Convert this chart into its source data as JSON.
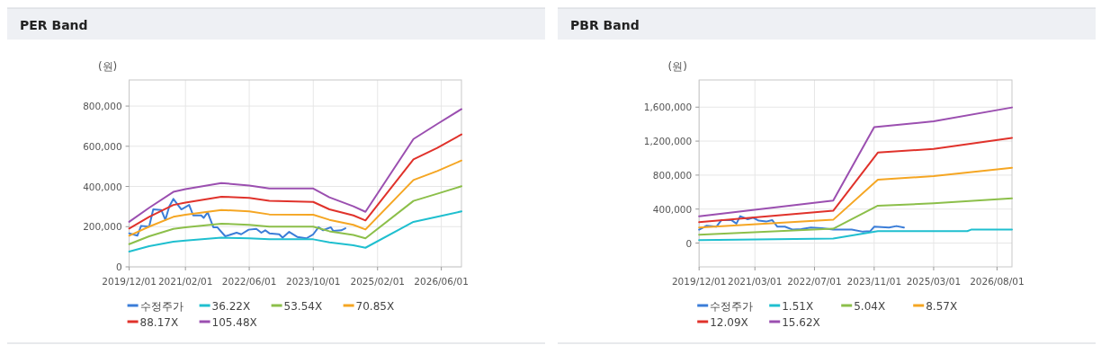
{
  "chart_data": [
    {
      "type": "line",
      "title": "PER Band",
      "ylabel": "(원)",
      "grid": true,
      "legend": "bottom",
      "xlim": [
        "2019-12-01",
        "2026-11-01"
      ],
      "ylim": [
        0,
        930000
      ],
      "xticks": [
        {
          "value": "2019-12-01",
          "label": "2019/12/01"
        },
        {
          "value": "2021-02-01",
          "label": "2021/02/01"
        },
        {
          "value": "2022-06-01",
          "label": "2022/06/01"
        },
        {
          "value": "2023-10-01",
          "label": "2023/10/01"
        },
        {
          "value": "2025-02-01",
          "label": "2025/02/01"
        },
        {
          "value": "2026-06-01",
          "label": "2026/06/01"
        }
      ],
      "yticks": [
        0,
        {
          "value": 200000,
          "label": "200,000"
        },
        {
          "value": 400000,
          "label": "400,000"
        },
        {
          "value": 600000,
          "label": "600,000"
        },
        {
          "value": 800000,
          "label": "800,000"
        }
      ],
      "series": [
        {
          "name": "수정주가",
          "color": "#3b7dd8",
          "x": [
            "2019-12-01",
            "2020-02-01",
            "2020-03-01",
            "2020-05-01",
            "2020-06-01",
            "2020-08-01",
            "2020-09-01",
            "2020-10-01",
            "2020-11-01",
            "2021-01-01",
            "2021-03-01",
            "2021-04-01",
            "2021-06-01",
            "2021-06-20",
            "2021-07-20",
            "2021-09-01",
            "2021-10-01",
            "2021-12-01",
            "2022-02-25",
            "2022-04-01",
            "2022-05-28",
            "2022-07-25",
            "2022-09-01",
            "2022-10-01",
            "2022-11-01",
            "2023-01-15",
            "2023-02-10",
            "2023-04-01",
            "2023-06-01",
            "2023-08-10",
            "2023-10-01",
            "2023-11-10",
            "2023-12-15",
            "2024-02-12",
            "2024-03-01",
            "2024-05-01",
            "2024-06-01"
          ],
          "values": [
            167000,
            155000,
            204000,
            200000,
            286000,
            283000,
            234000,
            301000,
            338000,
            286000,
            308000,
            256000,
            256000,
            244000,
            271000,
            197000,
            197000,
            152000,
            170000,
            162000,
            185000,
            189000,
            170000,
            182000,
            167000,
            162000,
            145000,
            174000,
            149000,
            142000,
            162000,
            197000,
            182000,
            197000,
            179000,
            182000,
            192000
          ]
        },
        {
          "name": "36.22X",
          "color": "#1fbfcf",
          "x": [
            "2019-12-01",
            "2020-05-01",
            "2020-11-01",
            "2021-02-01",
            "2021-11-01",
            "2022-06-01",
            "2022-11-01",
            "2023-10-01",
            "2024-02-01",
            "2024-08-01",
            "2024-11-01",
            "2025-11-01",
            "2026-05-01",
            "2026-11-01"
          ],
          "values": [
            76000,
            103000,
            125000,
            131000,
            145000,
            142000,
            137000,
            137000,
            122000,
            107000,
            95000,
            224000,
            249000,
            276000
          ]
        },
        {
          "name": "53.54X",
          "color": "#8cbf4a",
          "x": [
            "2019-12-01",
            "2020-05-01",
            "2020-11-01",
            "2021-02-01",
            "2021-11-01",
            "2022-06-01",
            "2022-11-01",
            "2023-10-01",
            "2024-02-01",
            "2024-08-01",
            "2024-11-01",
            "2025-11-01",
            "2026-05-01",
            "2026-11-01"
          ],
          "values": [
            113000,
            152000,
            189000,
            197000,
            215000,
            209000,
            200000,
            200000,
            177000,
            159000,
            142000,
            328000,
            364000,
            401000
          ]
        },
        {
          "name": "70.85X",
          "color": "#f5a623",
          "x": [
            "2019-12-01",
            "2020-05-01",
            "2020-11-01",
            "2021-02-01",
            "2021-11-01",
            "2022-06-01",
            "2022-11-01",
            "2023-10-01",
            "2024-02-01",
            "2024-08-01",
            "2024-11-01",
            "2025-11-01",
            "2026-05-01",
            "2026-11-01"
          ],
          "values": [
            155000,
            200000,
            249000,
            259000,
            283000,
            276000,
            261000,
            259000,
            234000,
            209000,
            186000,
            432000,
            477000,
            529000
          ]
        },
        {
          "name": "88.17X",
          "color": "#e0322b",
          "x": [
            "2019-12-01",
            "2020-05-01",
            "2020-11-01",
            "2021-02-01",
            "2021-11-01",
            "2022-06-01",
            "2022-11-01",
            "2023-10-01",
            "2024-02-01",
            "2024-08-01",
            "2024-11-01",
            "2025-11-01",
            "2026-05-01",
            "2026-11-01"
          ],
          "values": [
            191000,
            249000,
            308000,
            320000,
            349000,
            343000,
            329000,
            323000,
            286000,
            256000,
            231000,
            535000,
            592000,
            659000
          ]
        },
        {
          "name": "105.48X",
          "color": "#9b4fb0",
          "x": [
            "2019-12-01",
            "2020-05-01",
            "2020-11-01",
            "2021-02-01",
            "2021-11-01",
            "2022-06-01",
            "2022-11-01",
            "2023-10-01",
            "2024-02-01",
            "2024-08-01",
            "2024-11-01",
            "2025-11-01",
            "2026-05-01",
            "2026-11-01"
          ],
          "values": [
            224000,
            294000,
            373000,
            387000,
            417000,
            405000,
            390000,
            390000,
            346000,
            301000,
            274000,
            636000,
            711000,
            785000
          ]
        }
      ]
    },
    {
      "type": "line",
      "title": "PBR Band",
      "ylabel": "(원)",
      "grid": true,
      "legend": "bottom",
      "xlim": [
        "2019-12-01",
        "2026-12-01"
      ],
      "ylim": [
        -280000,
        1920000
      ],
      "xticks": [
        {
          "value": "2019-12-01",
          "label": "2019/12/01"
        },
        {
          "value": "2021-03-01",
          "label": "2021/03/01"
        },
        {
          "value": "2022-07-01",
          "label": "2022/07/01"
        },
        {
          "value": "2023-11-01",
          "label": "2023/11/01"
        },
        {
          "value": "2025-03-01",
          "label": "2025/03/01"
        },
        {
          "value": "2026-08-01",
          "label": "2026/08/01"
        }
      ],
      "yticks": [
        0,
        {
          "value": 400000,
          "label": "400,000"
        },
        {
          "value": 800000,
          "label": "800,000"
        },
        {
          "value": 1200000,
          "label": "1,200,000"
        },
        {
          "value": 1600000,
          "label": "1,600,000"
        }
      ],
      "series": [
        {
          "name": "수정주가",
          "color": "#3b7dd8",
          "x": [
            "2019-12-01",
            "2020-02-01",
            "2020-04-20",
            "2020-06-01",
            "2020-08-20",
            "2020-10-01",
            "2020-11-01",
            "2021-01-01",
            "2021-02-15",
            "2021-04-01",
            "2021-06-01",
            "2021-07-20",
            "2021-09-01",
            "2021-11-01",
            "2022-01-05",
            "2022-03-15",
            "2022-06-01",
            "2022-09-01",
            "2022-12-01",
            "2023-05-01",
            "2023-08-01",
            "2023-10-01",
            "2023-11-01",
            "2024-03-01",
            "2024-05-01",
            "2024-07-01"
          ],
          "values": [
            158000,
            204000,
            193000,
            271000,
            271000,
            229000,
            316000,
            281000,
            299000,
            264000,
            253000,
            271000,
            193000,
            193000,
            158000,
            165000,
            183000,
            176000,
            158000,
            158000,
            134000,
            141000,
            193000,
            183000,
            200000,
            183000
          ]
        },
        {
          "name": "1.51X",
          "color": "#1fbfcf",
          "x": [
            "2019-12-01",
            "2022-12-01",
            "2023-12-01",
            "2025-03-01",
            "2025-12-01",
            "2026-01-01",
            "2026-12-01"
          ],
          "values": [
            35000,
            53000,
            141000,
            141000,
            141000,
            158000,
            158000
          ]
        },
        {
          "name": "5.04X",
          "color": "#8cbf4a",
          "x": [
            "2019-12-01",
            "2022-12-01",
            "2023-12-01",
            "2025-03-01",
            "2026-12-01"
          ],
          "values": [
            98000,
            169000,
            440000,
            468000,
            527000
          ]
        },
        {
          "name": "8.57X",
          "color": "#f5a623",
          "x": [
            "2019-12-01",
            "2022-12-01",
            "2023-12-01",
            "2025-03-01",
            "2026-12-01"
          ],
          "values": [
            183000,
            274000,
            745000,
            788000,
            886000
          ]
        },
        {
          "name": "12.09X",
          "color": "#e0322b",
          "x": [
            "2019-12-01",
            "2022-12-01",
            "2023-12-01",
            "2025-03-01",
            "2026-12-01"
          ],
          "values": [
            246000,
            380000,
            1065000,
            1108000,
            1238000
          ]
        },
        {
          "name": "15.62X",
          "color": "#9b4fb0",
          "x": [
            "2019-12-01",
            "2022-12-01",
            "2023-11-01",
            "2025-03-01",
            "2026-12-01"
          ],
          "values": [
            316000,
            499000,
            1364000,
            1434000,
            1596000
          ]
        }
      ]
    }
  ]
}
